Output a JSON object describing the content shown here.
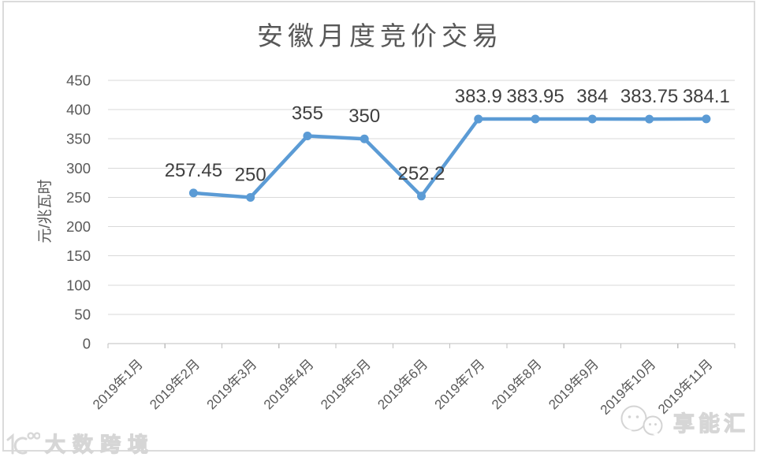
{
  "chart_data": {
    "type": "line",
    "title": "安徽月度竞价交易",
    "xlabel": "",
    "ylabel": "元/兆瓦时",
    "categories": [
      "2019年1月",
      "2019年2月",
      "2019年3月",
      "2019年4月",
      "2019年5月",
      "2019年6月",
      "2019年7月",
      "2019年8月",
      "2019年9月",
      "2019年10月",
      "2019年11月"
    ],
    "series": [
      {
        "name": "安徽月度竞价交易",
        "color": "#5B9BD5",
        "values": [
          null,
          257.45,
          250,
          355,
          350,
          252.2,
          383.9,
          383.95,
          384,
          383.75,
          384.1
        ],
        "labels": [
          "",
          "257.45",
          "250",
          "355",
          "350",
          "252.2",
          "383.9",
          "383.95",
          "384",
          "383.75",
          "384.1"
        ]
      }
    ],
    "ylim": [
      0,
      450
    ],
    "ytick_step": 50,
    "grid": true,
    "legend": "none",
    "colors": {
      "gridline": "#d9d9d9",
      "axis": "#bfbfbf",
      "tick_text": "#595959",
      "data_label": "#3f3f3f",
      "title_text": "#585858"
    }
  },
  "watermarks": {
    "bottom_left": {
      "text": "大数跨境",
      "icon": "logo-10100-icon"
    },
    "bottom_right": {
      "text": "享能汇",
      "icon": "chat-bubbles-icon"
    }
  }
}
